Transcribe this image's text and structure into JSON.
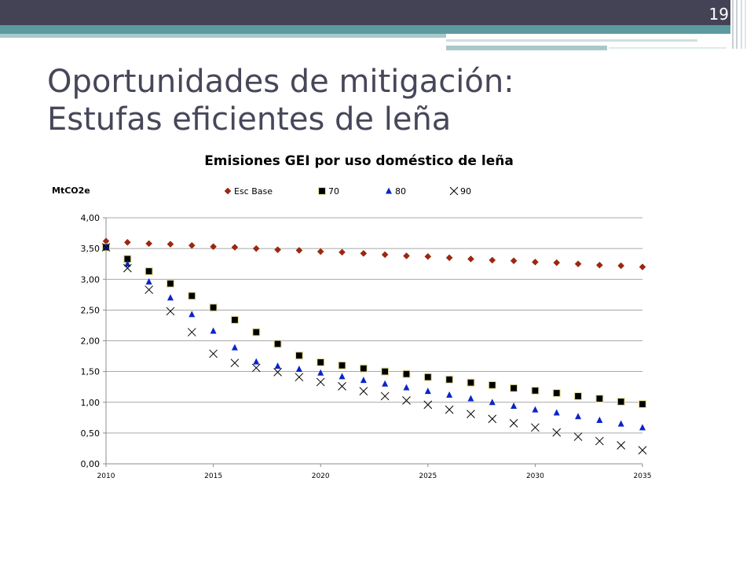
{
  "slide": {
    "page_number": "19",
    "title_line1": "Oportunidades de mitigación:",
    "title_line2": "Estufas eficientes de leña"
  },
  "colors": {
    "header_dark": "#444355",
    "header_teal": "#5b9ba0",
    "title_text": "#47475a",
    "esc_base": "#a0260d",
    "s70": "#000000",
    "s80": "#0a24c8",
    "s90": "#000000"
  },
  "chart_data": {
    "type": "scatter",
    "title": "Emisiones GEI por uso doméstico de leña",
    "ylabel": "MtCO2e",
    "xlabel": "",
    "xlim": [
      2010,
      2035
    ],
    "ylim": [
      0,
      4
    ],
    "grid": true,
    "legend_position": "top",
    "x_ticks": [
      2010,
      2015,
      2020,
      2025,
      2030,
      2035
    ],
    "y_ticks": [
      "0,00",
      "0,50",
      "1,00",
      "1,50",
      "2,00",
      "2,50",
      "3,00",
      "3,50",
      "4,00"
    ],
    "x": [
      2010,
      2011,
      2012,
      2013,
      2014,
      2015,
      2016,
      2017,
      2018,
      2019,
      2020,
      2021,
      2022,
      2023,
      2024,
      2025,
      2026,
      2027,
      2028,
      2029,
      2030,
      2031,
      2032,
      2033,
      2034,
      2035
    ],
    "series": [
      {
        "name": "Esc Base",
        "marker": "diamond",
        "values": [
          3.62,
          3.6,
          3.58,
          3.57,
          3.55,
          3.53,
          3.52,
          3.5,
          3.48,
          3.47,
          3.45,
          3.44,
          3.42,
          3.4,
          3.38,
          3.37,
          3.35,
          3.33,
          3.31,
          3.3,
          3.28,
          3.27,
          3.25,
          3.23,
          3.22,
          3.2
        ]
      },
      {
        "name": "70",
        "marker": "square",
        "values": [
          3.52,
          3.33,
          3.13,
          2.93,
          2.73,
          2.54,
          2.34,
          2.14,
          1.95,
          1.76,
          1.65,
          1.6,
          1.55,
          1.5,
          1.46,
          1.41,
          1.37,
          1.32,
          1.28,
          1.23,
          1.19,
          1.15,
          1.1,
          1.06,
          1.01,
          0.97
        ]
      },
      {
        "name": "80",
        "marker": "triangle",
        "values": [
          3.53,
          3.25,
          2.96,
          2.7,
          2.43,
          2.16,
          1.89,
          1.66,
          1.59,
          1.54,
          1.48,
          1.42,
          1.36,
          1.3,
          1.24,
          1.18,
          1.12,
          1.06,
          1.0,
          0.94,
          0.88,
          0.83,
          0.77,
          0.71,
          0.65,
          0.59
        ]
      },
      {
        "name": "90",
        "marker": "x",
        "values": [
          3.52,
          3.18,
          2.83,
          2.48,
          2.14,
          1.79,
          1.64,
          1.56,
          1.49,
          1.41,
          1.33,
          1.26,
          1.18,
          1.1,
          1.03,
          0.96,
          0.88,
          0.81,
          0.73,
          0.66,
          0.59,
          0.51,
          0.44,
          0.37,
          0.3,
          0.22
        ]
      }
    ]
  }
}
